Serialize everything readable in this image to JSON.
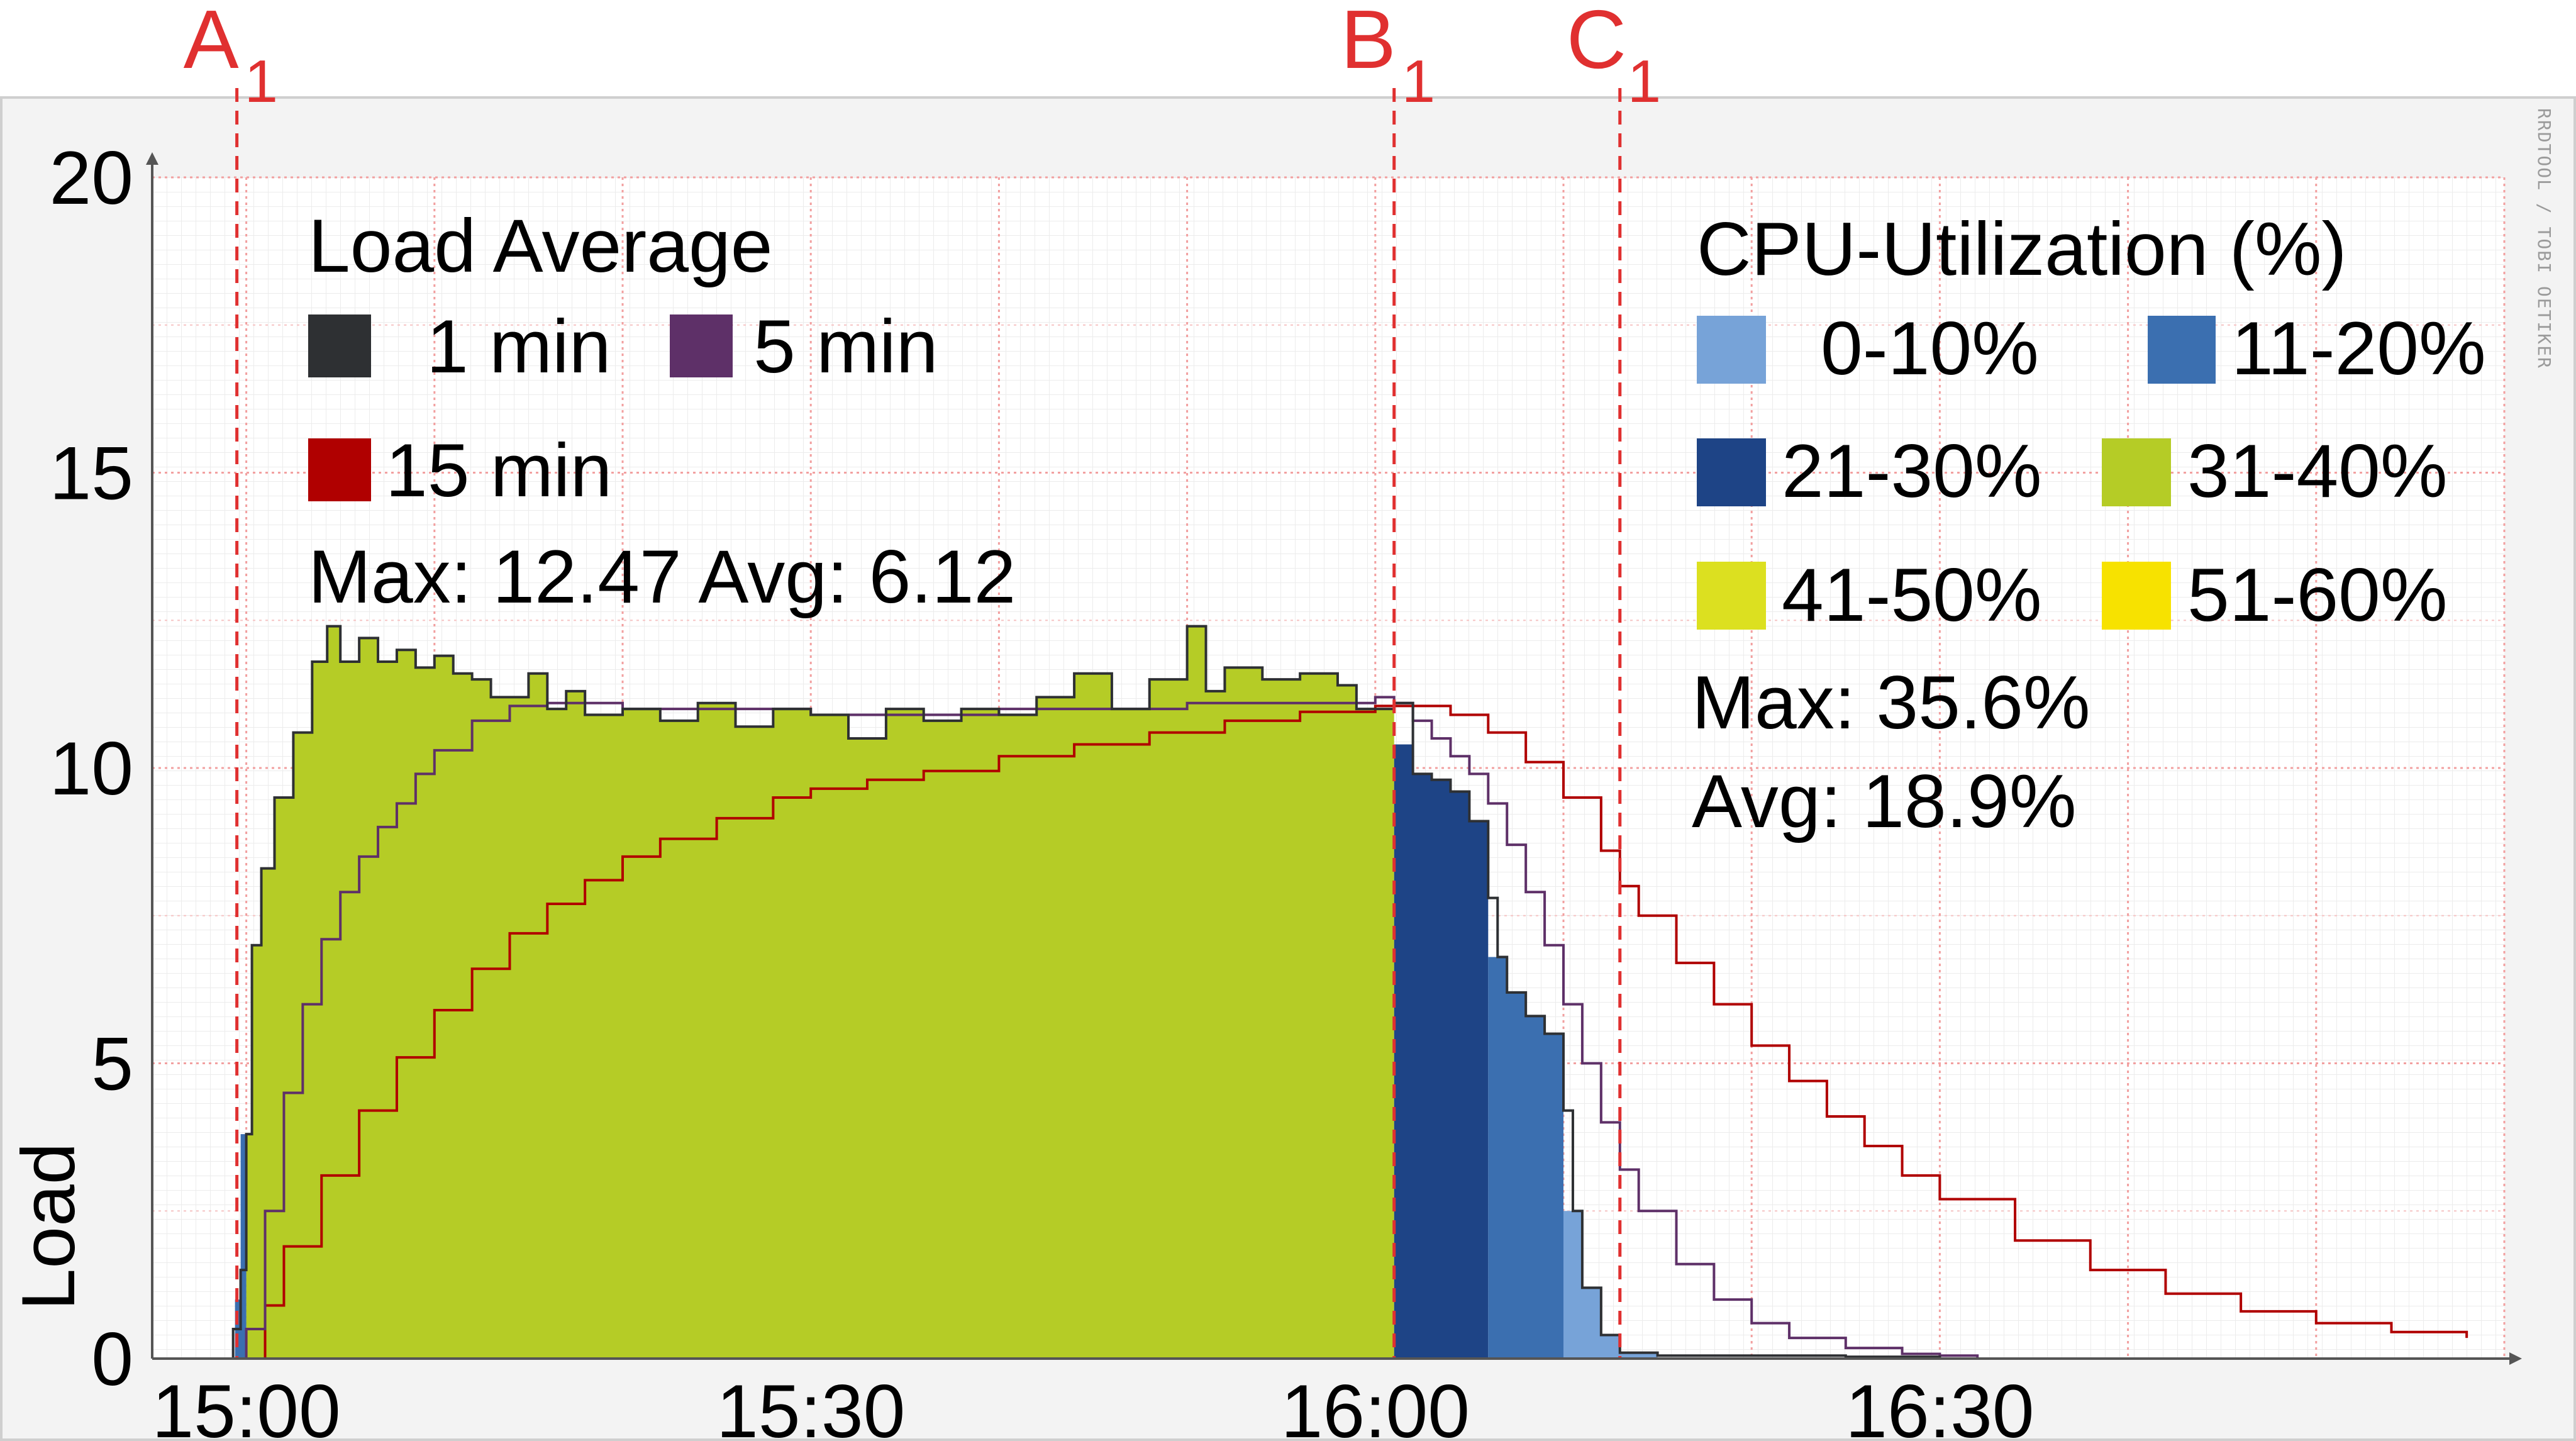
{
  "chart_data": {
    "type": "area",
    "ylabel": "Load",
    "ylim": [
      0,
      20
    ],
    "y_ticks": [
      "0",
      "5",
      "10",
      "15",
      "20"
    ],
    "x_ticks": [
      {
        "label": "15:00",
        "t": 0
      },
      {
        "label": "15:30",
        "t": 30
      },
      {
        "label": "16:00",
        "t": 60
      },
      {
        "label": "16:30",
        "t": 90
      }
    ],
    "xlim_minutes": [
      -5,
      120
    ],
    "grid": true,
    "watermark": "RRDTOOL / TOBI OETIKER",
    "markers": [
      {
        "letter": "A",
        "sub": "1",
        "t": -0.5
      },
      {
        "letter": "B",
        "sub": "1",
        "t": 61
      },
      {
        "letter": "C",
        "sub": "1",
        "t": 73
      }
    ],
    "load_legend": {
      "title": "Load Average",
      "entries": [
        {
          "label": "1 min",
          "color": "#2e3033"
        },
        {
          "label": "5 min",
          "color": "#5e3068"
        },
        {
          "label": "15 min",
          "color": "#b00000"
        }
      ],
      "stats": "Max: 12.47 Avg: 6.12"
    },
    "cpu_legend": {
      "title": "CPU-Utilization (%)",
      "entries": [
        {
          "label": "0-10%",
          "color": "#77a3d8"
        },
        {
          "label": "11-20%",
          "color": "#3b6fb0"
        },
        {
          "label": "21-30%",
          "color": "#1e4486"
        },
        {
          "label": "31-40%",
          "color": "#b5cc26"
        },
        {
          "label": "41-50%",
          "color": "#dce020"
        },
        {
          "label": "51-60%",
          "color": "#f7e200"
        }
      ],
      "stats_max": "Max: 35.6%",
      "stats_avg": "Avg: 18.9%"
    },
    "series": [
      {
        "name": "1 min",
        "color": "#2e3033",
        "points": [
          [
            -5,
            0
          ],
          [
            -1,
            0
          ],
          [
            -0.7,
            0.5
          ],
          [
            -0.3,
            1.5
          ],
          [
            0,
            3.8
          ],
          [
            0.3,
            7
          ],
          [
            0.8,
            8.3
          ],
          [
            1.5,
            9.5
          ],
          [
            2.5,
            10.6
          ],
          [
            3.5,
            11.8
          ],
          [
            4.3,
            12.4
          ],
          [
            5,
            11.8
          ],
          [
            6,
            12.2
          ],
          [
            7,
            11.8
          ],
          [
            8,
            12
          ],
          [
            9,
            11.7
          ],
          [
            10,
            11.9
          ],
          [
            11,
            11.6
          ],
          [
            12,
            11.5
          ],
          [
            13,
            11.2
          ],
          [
            15,
            11.6
          ],
          [
            16,
            11.0
          ],
          [
            17,
            11.3
          ],
          [
            18,
            10.9
          ],
          [
            20,
            11.0
          ],
          [
            22,
            10.8
          ],
          [
            24,
            11.1
          ],
          [
            26,
            10.7
          ],
          [
            28,
            11.0
          ],
          [
            30,
            10.9
          ],
          [
            32,
            10.5
          ],
          [
            34,
            11.0
          ],
          [
            36,
            10.8
          ],
          [
            38,
            11.0
          ],
          [
            40,
            10.9
          ],
          [
            42,
            11.2
          ],
          [
            44,
            11.6
          ],
          [
            46,
            11.0
          ],
          [
            48,
            11.5
          ],
          [
            50,
            12.4
          ],
          [
            51,
            11.3
          ],
          [
            52,
            11.7
          ],
          [
            54,
            11.5
          ],
          [
            56,
            11.6
          ],
          [
            58,
            11.4
          ],
          [
            59,
            11.0
          ],
          [
            60,
            11.0
          ],
          [
            61,
            11.1
          ],
          [
            62,
            9.9
          ],
          [
            63,
            9.8
          ],
          [
            64,
            9.6
          ],
          [
            65,
            9.1
          ],
          [
            66,
            7.8
          ],
          [
            66.5,
            6.8
          ],
          [
            67,
            6.2
          ],
          [
            68,
            5.8
          ],
          [
            69,
            5.5
          ],
          [
            70,
            4.2
          ],
          [
            70.5,
            2.5
          ],
          [
            71,
            1.2
          ],
          [
            72,
            0.4
          ],
          [
            73,
            0.1
          ],
          [
            75,
            0.05
          ],
          [
            80,
            0.05
          ],
          [
            85,
            0.03
          ],
          [
            90,
            0
          ]
        ]
      },
      {
        "name": "5 min",
        "color": "#5e3068",
        "points": [
          [
            -5,
            0
          ],
          [
            -0.5,
            0
          ],
          [
            0,
            0.5
          ],
          [
            1,
            2.5
          ],
          [
            2,
            4.5
          ],
          [
            3,
            6
          ],
          [
            4,
            7.1
          ],
          [
            5,
            7.9
          ],
          [
            6,
            8.5
          ],
          [
            7,
            9.0
          ],
          [
            8,
            9.4
          ],
          [
            9,
            9.9
          ],
          [
            10,
            10.3
          ],
          [
            12,
            10.8
          ],
          [
            14,
            11.05
          ],
          [
            16,
            11.1
          ],
          [
            18,
            11.1
          ],
          [
            20,
            11.0
          ],
          [
            25,
            11.0
          ],
          [
            30,
            10.9
          ],
          [
            35,
            10.9
          ],
          [
            40,
            11.0
          ],
          [
            45,
            11.0
          ],
          [
            50,
            11.1
          ],
          [
            55,
            11.1
          ],
          [
            60,
            11.2
          ],
          [
            61,
            11.1
          ],
          [
            62,
            10.8
          ],
          [
            63,
            10.5
          ],
          [
            64,
            10.2
          ],
          [
            65,
            9.9
          ],
          [
            66,
            9.4
          ],
          [
            67,
            8.7
          ],
          [
            68,
            7.9
          ],
          [
            69,
            7.0
          ],
          [
            70,
            6.0
          ],
          [
            71,
            5.0
          ],
          [
            72,
            4.0
          ],
          [
            73,
            3.2
          ],
          [
            74,
            2.5
          ],
          [
            76,
            1.6
          ],
          [
            78,
            1.0
          ],
          [
            80,
            0.6
          ],
          [
            82,
            0.35
          ],
          [
            85,
            0.18
          ],
          [
            88,
            0.08
          ],
          [
            90,
            0.05
          ],
          [
            92,
            0.02
          ]
        ]
      },
      {
        "name": "15 min",
        "color": "#b00000",
        "points": [
          [
            -5,
            0
          ],
          [
            0,
            0
          ],
          [
            1,
            0.9
          ],
          [
            2,
            1.9
          ],
          [
            4,
            3.1
          ],
          [
            6,
            4.2
          ],
          [
            8,
            5.1
          ],
          [
            10,
            5.9
          ],
          [
            12,
            6.6
          ],
          [
            14,
            7.2
          ],
          [
            16,
            7.7
          ],
          [
            18,
            8.1
          ],
          [
            20,
            8.5
          ],
          [
            22,
            8.8
          ],
          [
            25,
            9.15
          ],
          [
            28,
            9.5
          ],
          [
            30,
            9.65
          ],
          [
            33,
            9.8
          ],
          [
            36,
            9.95
          ],
          [
            40,
            10.2
          ],
          [
            44,
            10.4
          ],
          [
            48,
            10.6
          ],
          [
            52,
            10.8
          ],
          [
            56,
            10.95
          ],
          [
            60,
            11.05
          ],
          [
            62,
            11.05
          ],
          [
            64,
            10.9
          ],
          [
            66,
            10.6
          ],
          [
            68,
            10.1
          ],
          [
            70,
            9.5
          ],
          [
            72,
            8.6
          ],
          [
            73,
            8.0
          ],
          [
            74,
            7.5
          ],
          [
            76,
            6.7
          ],
          [
            78,
            6.0
          ],
          [
            80,
            5.3
          ],
          [
            82,
            4.7
          ],
          [
            84,
            4.1
          ],
          [
            86,
            3.6
          ],
          [
            88,
            3.1
          ],
          [
            90,
            2.7
          ],
          [
            94,
            2.0
          ],
          [
            98,
            1.5
          ],
          [
            102,
            1.1
          ],
          [
            106,
            0.8
          ],
          [
            110,
            0.6
          ],
          [
            114,
            0.45
          ],
          [
            118,
            0.35
          ]
        ]
      }
    ],
    "cpu_areas": [
      {
        "range": "31-40%",
        "color": "#b5cc26",
        "t_start": 0,
        "t_end": 61,
        "points": [
          [
            0,
            3.8
          ],
          [
            0.3,
            7
          ],
          [
            0.8,
            8.3
          ],
          [
            1.5,
            9.5
          ],
          [
            2.5,
            10.6
          ],
          [
            3.5,
            11.8
          ],
          [
            4.3,
            12.4
          ],
          [
            5,
            11.8
          ],
          [
            6,
            12.2
          ],
          [
            7,
            11.8
          ],
          [
            8,
            12
          ],
          [
            9,
            11.7
          ],
          [
            10,
            11.9
          ],
          [
            11,
            11.6
          ],
          [
            12,
            11.5
          ],
          [
            13,
            11.2
          ],
          [
            15,
            11.6
          ],
          [
            16,
            11.0
          ],
          [
            17,
            11.3
          ],
          [
            18,
            10.9
          ],
          [
            20,
            11.0
          ],
          [
            22,
            10.8
          ],
          [
            24,
            11.1
          ],
          [
            26,
            10.7
          ],
          [
            28,
            11.0
          ],
          [
            30,
            10.9
          ],
          [
            32,
            10.5
          ],
          [
            34,
            11.0
          ],
          [
            36,
            10.8
          ],
          [
            38,
            11.0
          ],
          [
            40,
            10.9
          ],
          [
            42,
            11.2
          ],
          [
            44,
            11.6
          ],
          [
            46,
            11.0
          ],
          [
            48,
            11.5
          ],
          [
            50,
            12.4
          ],
          [
            51,
            11.3
          ],
          [
            52,
            11.7
          ],
          [
            54,
            11.5
          ],
          [
            56,
            11.6
          ],
          [
            58,
            11.4
          ],
          [
            59,
            11.0
          ],
          [
            60,
            11.0
          ],
          [
            61,
            11.1
          ]
        ]
      },
      {
        "range": "21-30%",
        "color": "#1e4486",
        "t_start": 61,
        "t_end": 66,
        "points": [
          [
            61,
            10.4
          ],
          [
            62,
            9.9
          ],
          [
            63,
            9.8
          ],
          [
            64,
            9.6
          ],
          [
            65,
            9.1
          ],
          [
            66,
            7.8
          ]
        ]
      },
      {
        "range": "11-20%",
        "color": "#3b6fb0",
        "t_start": 66,
        "t_end": 70,
        "points": [
          [
            66,
            6.8
          ],
          [
            67,
            6.2
          ],
          [
            68,
            5.8
          ],
          [
            69,
            5.5
          ],
          [
            70,
            4.2
          ]
        ]
      },
      {
        "range": "0-10%",
        "color": "#77a3d8",
        "t_start": 70,
        "t_end": 75,
        "points": [
          [
            70,
            2.5
          ],
          [
            71,
            1.2
          ],
          [
            72,
            0.4
          ],
          [
            73,
            0.1
          ],
          [
            75,
            0.05
          ]
        ]
      },
      {
        "range": "11-20%",
        "color": "#3b6fb0",
        "t_start": -1,
        "t_end": 0,
        "points": [
          [
            -1,
            0
          ],
          [
            -0.6,
            1.0
          ],
          [
            -0.3,
            3.8
          ],
          [
            0,
            3.8
          ]
        ]
      }
    ]
  }
}
